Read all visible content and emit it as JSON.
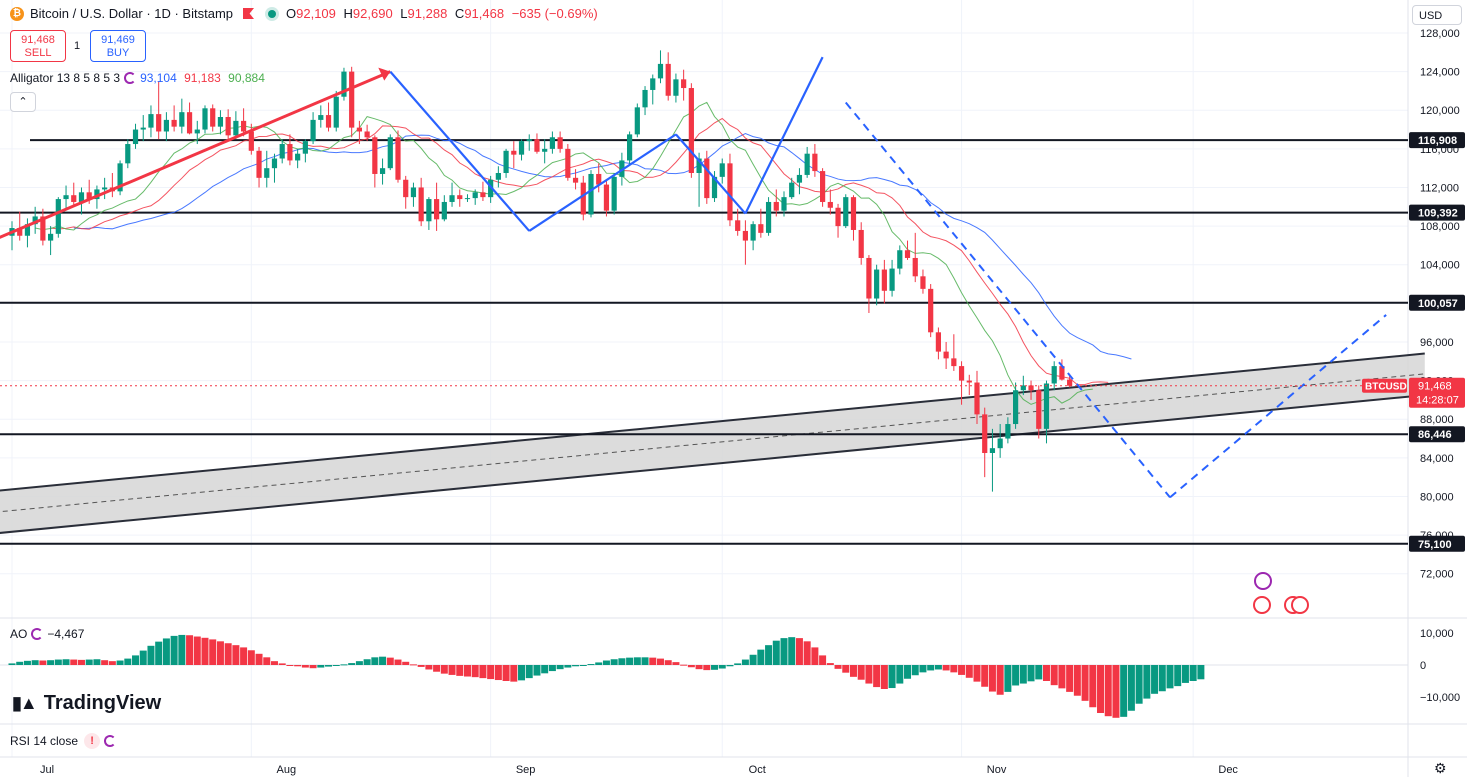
{
  "header": {
    "coin_symbol": "₿",
    "title": "Bitcoin / U.S. Dollar · 1D · Bitstamp",
    "ohlc": {
      "o_label": "O",
      "o": "92,109",
      "h_label": "H",
      "h": "92,690",
      "l_label": "L",
      "l": "91,288",
      "c_label": "C",
      "c": "91,468",
      "change": "−635 (−0.69%)"
    }
  },
  "trade": {
    "sell_price": "91,468",
    "sell_label": "SELL",
    "spread": "1",
    "buy_price": "91,469",
    "buy_label": "BUY"
  },
  "alligator": {
    "label": "Alligator 13 8 5 8 5 3",
    "jaw": "93,104",
    "teeth": "91,183",
    "lips": "90,884"
  },
  "currency": "USD",
  "ao": {
    "label": "AO",
    "value": "−4,467"
  },
  "rsi": {
    "label": "RSI 14 close",
    "warning": "!"
  },
  "branding": {
    "name": "TradingView"
  },
  "colors": {
    "up": "#089981",
    "down": "#f23645",
    "jaw": "#2962ff",
    "teeth": "#f23645",
    "lips": "#4caf50",
    "channel": "#d6d6d6"
  },
  "chart_data": {
    "type": "candlestick",
    "title": "Bitcoin / U.S. Dollar · 1D · Bitstamp",
    "price_axis": {
      "range": [
        70000,
        128000
      ],
      "ticks": [
        72000,
        76000,
        80000,
        84000,
        88000,
        92000,
        96000,
        100000,
        104000,
        108000,
        112000,
        116000,
        120000,
        124000,
        128000
      ],
      "tick_labels": [
        "72,000",
        "76,000",
        "80,000",
        "84,000",
        "88,000",
        "92,000",
        "96,000",
        "100,000",
        "104,000",
        "108,000",
        "112,000",
        "116,000",
        "120,000",
        "124,000",
        "128,000"
      ]
    },
    "x_axis": {
      "labels": [
        "Jul",
        "Aug",
        "Sep",
        "Oct",
        "Nov",
        "Dec"
      ],
      "label_day_index": [
        0,
        31,
        62,
        92,
        123,
        153
      ]
    },
    "horizontal_levels": [
      116908,
      109392,
      100057,
      86446,
      75100
    ],
    "level_labels": [
      "116,908",
      "109,392",
      "100,057",
      "86,446",
      "75,100"
    ],
    "last_price": {
      "symbol": "BTCUSD",
      "value": "91,468",
      "countdown": "14:28:07",
      "price": 91468
    },
    "channel": {
      "upper": [
        [
          -7,
          80200
        ],
        [
          183,
          94800
        ]
      ],
      "lower": [
        [
          -7,
          75800
        ],
        [
          183,
          90500
        ]
      ],
      "mid": [
        [
          -7,
          78000
        ],
        [
          183,
          92700
        ]
      ]
    },
    "zigzag_solid": [
      [
        -7,
        105000
      ],
      [
        49,
        124000
      ],
      [
        67,
        107500
      ],
      [
        86,
        117500
      ],
      [
        95,
        109300
      ],
      [
        105,
        125500
      ]
    ],
    "zigzag_dashed": [
      [
        108,
        120800
      ],
      [
        150,
        79900
      ],
      [
        178,
        98800
      ]
    ],
    "ao_axis": {
      "range": [
        -13000,
        13000
      ],
      "ticks": [
        10000,
        0,
        -10000
      ],
      "tick_labels": [
        "10,000",
        "0",
        "−10,000"
      ]
    },
    "candles": [
      [
        107000,
        108500,
        105500,
        107800
      ],
      [
        107800,
        109500,
        106500,
        107000
      ],
      [
        107000,
        108800,
        105800,
        108200
      ],
      [
        108200,
        110000,
        107200,
        109000
      ],
      [
        109000,
        109800,
        106000,
        106500
      ],
      [
        106500,
        108000,
        105000,
        107200
      ],
      [
        107200,
        111000,
        106800,
        110800
      ],
      [
        110800,
        112200,
        109800,
        111200
      ],
      [
        111200,
        112500,
        110000,
        110500
      ],
      [
        110500,
        112000,
        109200,
        111500
      ],
      [
        111500,
        112800,
        110300,
        110800
      ],
      [
        110800,
        112200,
        109800,
        111800
      ],
      [
        111800,
        113000,
        110800,
        112000
      ],
      [
        112000,
        113500,
        111000,
        111600
      ],
      [
        111600,
        114800,
        111200,
        114500
      ],
      [
        114500,
        117000,
        114000,
        116500
      ],
      [
        116500,
        118600,
        116000,
        118000
      ],
      [
        118000,
        119500,
        116800,
        118200
      ],
      [
        118200,
        120500,
        117200,
        119600
      ],
      [
        119600,
        123000,
        117000,
        117800
      ],
      [
        117800,
        119800,
        116800,
        119000
      ],
      [
        119000,
        120500,
        117800,
        118300
      ],
      [
        118300,
        121200,
        117600,
        119800
      ],
      [
        119800,
        120800,
        117500,
        117600
      ],
      [
        117600,
        118900,
        116500,
        118000
      ],
      [
        118000,
        120500,
        117600,
        120200
      ],
      [
        120200,
        120600,
        117800,
        118300
      ],
      [
        118300,
        120000,
        117500,
        119300
      ],
      [
        119300,
        120100,
        116800,
        117400
      ],
      [
        117400,
        119900,
        117000,
        118900
      ],
      [
        118900,
        120200,
        117300,
        117800
      ],
      [
        117800,
        118600,
        115400,
        115800
      ],
      [
        115800,
        116200,
        112000,
        113000
      ],
      [
        113000,
        115800,
        112000,
        114000
      ],
      [
        114000,
        115500,
        112500,
        115000
      ],
      [
        115000,
        117000,
        114500,
        116500
      ],
      [
        116500,
        117500,
        114300,
        114800
      ],
      [
        114800,
        116000,
        114000,
        115500
      ],
      [
        115500,
        117000,
        114600,
        116800
      ],
      [
        116800,
        119800,
        116500,
        119000
      ],
      [
        119000,
        120500,
        118200,
        119500
      ],
      [
        119500,
        120800,
        117800,
        118200
      ],
      [
        118200,
        122000,
        117800,
        121400
      ],
      [
        121400,
        124400,
        121000,
        124000
      ],
      [
        124000,
        124500,
        117200,
        118200
      ],
      [
        118200,
        118900,
        116500,
        117800
      ],
      [
        117800,
        118500,
        116800,
        117200
      ],
      [
        117200,
        117400,
        112000,
        113400
      ],
      [
        113400,
        115000,
        112300,
        114000
      ],
      [
        114000,
        117500,
        113800,
        117200
      ],
      [
        117200,
        117900,
        112500,
        112800
      ],
      [
        112800,
        113200,
        109800,
        111000
      ],
      [
        111000,
        112500,
        110000,
        112000
      ],
      [
        112000,
        113000,
        108000,
        108500
      ],
      [
        108500,
        111000,
        107600,
        110800
      ],
      [
        110800,
        112500,
        107500,
        108700
      ],
      [
        108700,
        111200,
        108500,
        110500
      ],
      [
        110500,
        112500,
        110000,
        111200
      ],
      [
        111200,
        111800,
        110000,
        110800
      ],
      [
        110800,
        111300,
        110500,
        110900
      ],
      [
        110900,
        111800,
        110200,
        111500
      ],
      [
        111500,
        112600,
        110600,
        111000
      ],
      [
        111000,
        113200,
        110400,
        112800
      ],
      [
        112800,
        114200,
        112000,
        113500
      ],
      [
        113500,
        116000,
        113000,
        115800
      ],
      [
        115800,
        116800,
        114000,
        115400
      ],
      [
        115400,
        117000,
        114800,
        116800
      ],
      [
        116800,
        117500,
        115800,
        117000
      ],
      [
        117000,
        117600,
        115500,
        115700
      ],
      [
        115700,
        117000,
        114500,
        116000
      ],
      [
        116000,
        117800,
        115500,
        117200
      ],
      [
        117200,
        117800,
        115600,
        116000
      ],
      [
        116000,
        116500,
        112700,
        113000
      ],
      [
        113000,
        113900,
        111800,
        112500
      ],
      [
        112500,
        113200,
        108600,
        109200
      ],
      [
        109200,
        113800,
        108900,
        113400
      ],
      [
        113400,
        114500,
        111500,
        112300
      ],
      [
        112300,
        112800,
        109000,
        109600
      ],
      [
        109600,
        113500,
        109200,
        113100
      ],
      [
        113100,
        115600,
        112200,
        114800
      ],
      [
        114800,
        117800,
        114300,
        117500
      ],
      [
        117500,
        120700,
        117200,
        120300
      ],
      [
        120300,
        122500,
        119500,
        122100
      ],
      [
        122100,
        123700,
        120600,
        123300
      ],
      [
        123300,
        126200,
        122800,
        124800
      ],
      [
        124800,
        126000,
        121000,
        121500
      ],
      [
        121500,
        123800,
        120800,
        123200
      ],
      [
        123200,
        124200,
        121000,
        122300
      ],
      [
        122300,
        122800,
        113000,
        113500
      ],
      [
        113500,
        115600,
        110000,
        115000
      ],
      [
        115000,
        115800,
        110300,
        110900
      ],
      [
        110900,
        113700,
        110500,
        113100
      ],
      [
        113100,
        115000,
        112400,
        114500
      ],
      [
        114500,
        115500,
        108000,
        108600
      ],
      [
        108600,
        109800,
        107000,
        107500
      ],
      [
        107500,
        108600,
        104000,
        106500
      ],
      [
        106500,
        108500,
        105500,
        108200
      ],
      [
        108200,
        109800,
        106800,
        107300
      ],
      [
        107300,
        111000,
        107000,
        110500
      ],
      [
        110500,
        111800,
        109000,
        109600
      ],
      [
        109600,
        111600,
        109000,
        111000
      ],
      [
        111000,
        113000,
        110800,
        112500
      ],
      [
        112500,
        114000,
        111300,
        113300
      ],
      [
        113300,
        116200,
        113000,
        115500
      ],
      [
        115500,
        116500,
        113100,
        113700
      ],
      [
        113700,
        114000,
        110000,
        110500
      ],
      [
        110500,
        111800,
        109200,
        109900
      ],
      [
        109900,
        110300,
        106800,
        108000
      ],
      [
        108000,
        111300,
        107800,
        111000
      ],
      [
        111000,
        111200,
        106500,
        107600
      ],
      [
        107600,
        108400,
        104000,
        104700
      ],
      [
        104700,
        105000,
        99000,
        100500
      ],
      [
        100500,
        104000,
        99800,
        103500
      ],
      [
        103500,
        104500,
        100000,
        101300
      ],
      [
        101300,
        104500,
        100700,
        103600
      ],
      [
        103600,
        106000,
        103000,
        105500
      ],
      [
        105500,
        106500,
        104500,
        104700
      ],
      [
        104700,
        107300,
        102200,
        102800
      ],
      [
        102800,
        103500,
        101000,
        101500
      ],
      [
        101500,
        102000,
        96500,
        97000
      ],
      [
        97000,
        97500,
        94200,
        95000
      ],
      [
        95000,
        96000,
        93200,
        94300
      ],
      [
        94300,
        96800,
        93000,
        93500
      ],
      [
        93500,
        94000,
        89500,
        92000
      ],
      [
        92000,
        92600,
        90500,
        91800
      ],
      [
        91800,
        93000,
        87500,
        88500
      ],
      [
        88500,
        89200,
        82000,
        84500
      ],
      [
        84500,
        87000,
        80500,
        85000
      ],
      [
        85000,
        87500,
        84000,
        86000
      ],
      [
        86000,
        88200,
        85500,
        87500
      ],
      [
        87500,
        91800,
        87000,
        91000
      ],
      [
        91000,
        92500,
        90500,
        91500
      ],
      [
        91500,
        92000,
        90000,
        91000
      ],
      [
        91000,
        91500,
        86000,
        87000
      ],
      [
        87000,
        92000,
        85500,
        91700
      ],
      [
        91700,
        94000,
        91000,
        93500
      ],
      [
        93500,
        94200,
        92000,
        92100
      ],
      [
        92100,
        92700,
        91300,
        91468
      ]
    ],
    "ao_values": [
      500,
      1000,
      1300,
      1500,
      1400,
      1500,
      1700,
      1800,
      1700,
      1600,
      1700,
      1800,
      1500,
      1200,
      1400,
      2000,
      3000,
      4500,
      6000,
      7300,
      8300,
      9100,
      9400,
      9300,
      8900,
      8500,
      8000,
      7400,
      6800,
      6200,
      5500,
      4600,
      3500,
      2400,
      1200,
      500,
      0,
      -400,
      -800,
      -1000,
      -800,
      -500,
      -200,
      200,
      600,
      1200,
      1800,
      2400,
      2600,
      2300,
      1700,
      1000,
      200,
      -600,
      -1400,
      -2100,
      -2700,
      -3100,
      -3400,
      -3600,
      -3800,
      -4100,
      -4400,
      -4700,
      -5000,
      -5200,
      -4800,
      -4100,
      -3300,
      -2600,
      -1900,
      -1300,
      -800,
      -400,
      0,
      300,
      800,
      1400,
      1800,
      2100,
      2300,
      2400,
      2400,
      2300,
      2000,
      1500,
      900,
      100,
      -700,
      -1300,
      -1600,
      -1500,
      -1100,
      -400,
      500,
      1700,
      3200,
      4800,
      6200,
      7600,
      8400,
      8700,
      8400,
      7400,
      5500,
      3000,
      600,
      -1200,
      -2400,
      -3700,
      -4600,
      -5800,
      -6900,
      -7500,
      -7200,
      -5800,
      -4300,
      -3200,
      -2300,
      -1700,
      -1400,
      -1700,
      -2300,
      -3100,
      -4000,
      -5200,
      -6800,
      -8300,
      -9300,
      -8400,
      -6400,
      -5800,
      -5100,
      -4500,
      -5000,
      -6300,
      -7300,
      -8400,
      -9600,
      -11200,
      -13200,
      -15000,
      -16000,
      -16500,
      -16200,
      -14300,
      -12100,
      -10500,
      -9000,
      -8200,
      -7300,
      -6600,
      -5600,
      -5000,
      -4467
    ]
  }
}
